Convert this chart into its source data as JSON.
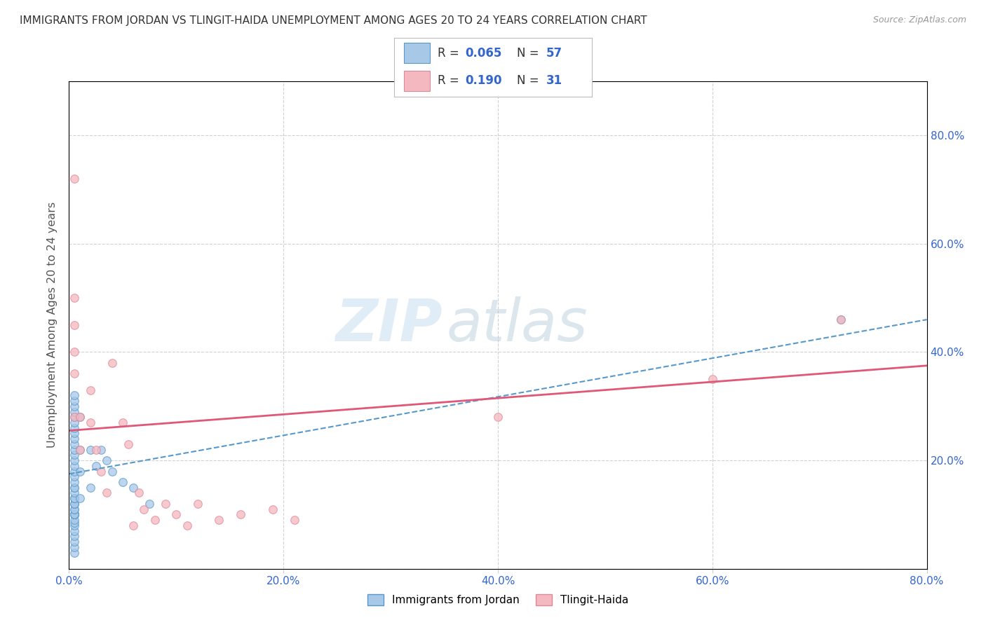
{
  "title": "IMMIGRANTS FROM JORDAN VS TLINGIT-HAIDA UNEMPLOYMENT AMONG AGES 20 TO 24 YEARS CORRELATION CHART",
  "source": "Source: ZipAtlas.com",
  "ylabel": "Unemployment Among Ages 20 to 24 years",
  "xlim": [
    0.0,
    0.8
  ],
  "ylim": [
    0.0,
    0.9
  ],
  "x_ticks": [
    0.0,
    0.2,
    0.4,
    0.6,
    0.8
  ],
  "y_ticks": [
    0.0,
    0.2,
    0.4,
    0.6,
    0.8
  ],
  "x_tick_labels": [
    "0.0%",
    "20.0%",
    "40.0%",
    "60.0%",
    "80.0%"
  ],
  "y_tick_labels_right": [
    "",
    "20.0%",
    "40.0%",
    "60.0%",
    "80.0%"
  ],
  "blue_R": 0.065,
  "blue_N": 57,
  "pink_R": 0.19,
  "pink_N": 31,
  "blue_color": "#a8c8e8",
  "pink_color": "#f4b8c0",
  "blue_edge_color": "#5599cc",
  "pink_edge_color": "#e08898",
  "blue_line_color": "#5599cc",
  "pink_line_color": "#e05878",
  "legend_label_blue": "Immigrants from Jordan",
  "legend_label_pink": "Tlingit-Haida",
  "watermark_zip": "ZIP",
  "watermark_atlas": "atlas",
  "background_color": "#ffffff",
  "grid_color": "#cccccc",
  "title_color": "#333333",
  "tick_color": "#3366cc",
  "blue_scatter_x": [
    0.005,
    0.005,
    0.005,
    0.005,
    0.005,
    0.005,
    0.005,
    0.005,
    0.005,
    0.005,
    0.005,
    0.005,
    0.005,
    0.005,
    0.005,
    0.005,
    0.005,
    0.005,
    0.005,
    0.005,
    0.005,
    0.005,
    0.005,
    0.005,
    0.005,
    0.005,
    0.005,
    0.005,
    0.005,
    0.005,
    0.005,
    0.005,
    0.005,
    0.005,
    0.005,
    0.005,
    0.005,
    0.005,
    0.005,
    0.005,
    0.005,
    0.005,
    0.005,
    0.01,
    0.01,
    0.01,
    0.01,
    0.02,
    0.02,
    0.025,
    0.03,
    0.035,
    0.04,
    0.05,
    0.06,
    0.075,
    0.72
  ],
  "blue_scatter_y": [
    0.03,
    0.04,
    0.05,
    0.06,
    0.07,
    0.08,
    0.085,
    0.09,
    0.1,
    0.1,
    0.1,
    0.1,
    0.1,
    0.1,
    0.1,
    0.11,
    0.11,
    0.12,
    0.12,
    0.12,
    0.13,
    0.13,
    0.13,
    0.14,
    0.15,
    0.15,
    0.16,
    0.17,
    0.18,
    0.19,
    0.2,
    0.21,
    0.22,
    0.23,
    0.24,
    0.25,
    0.26,
    0.27,
    0.28,
    0.29,
    0.3,
    0.31,
    0.32,
    0.13,
    0.18,
    0.22,
    0.28,
    0.15,
    0.22,
    0.19,
    0.22,
    0.2,
    0.18,
    0.16,
    0.15,
    0.12,
    0.46
  ],
  "pink_scatter_x": [
    0.005,
    0.005,
    0.005,
    0.005,
    0.005,
    0.005,
    0.01,
    0.01,
    0.02,
    0.02,
    0.025,
    0.03,
    0.035,
    0.04,
    0.05,
    0.055,
    0.06,
    0.065,
    0.07,
    0.08,
    0.09,
    0.1,
    0.11,
    0.12,
    0.14,
    0.16,
    0.19,
    0.21,
    0.4,
    0.6,
    0.72
  ],
  "pink_scatter_y": [
    0.72,
    0.5,
    0.45,
    0.4,
    0.36,
    0.28,
    0.28,
    0.22,
    0.33,
    0.27,
    0.22,
    0.18,
    0.14,
    0.38,
    0.27,
    0.23,
    0.08,
    0.14,
    0.11,
    0.09,
    0.12,
    0.1,
    0.08,
    0.12,
    0.09,
    0.1,
    0.11,
    0.09,
    0.28,
    0.35,
    0.46
  ]
}
